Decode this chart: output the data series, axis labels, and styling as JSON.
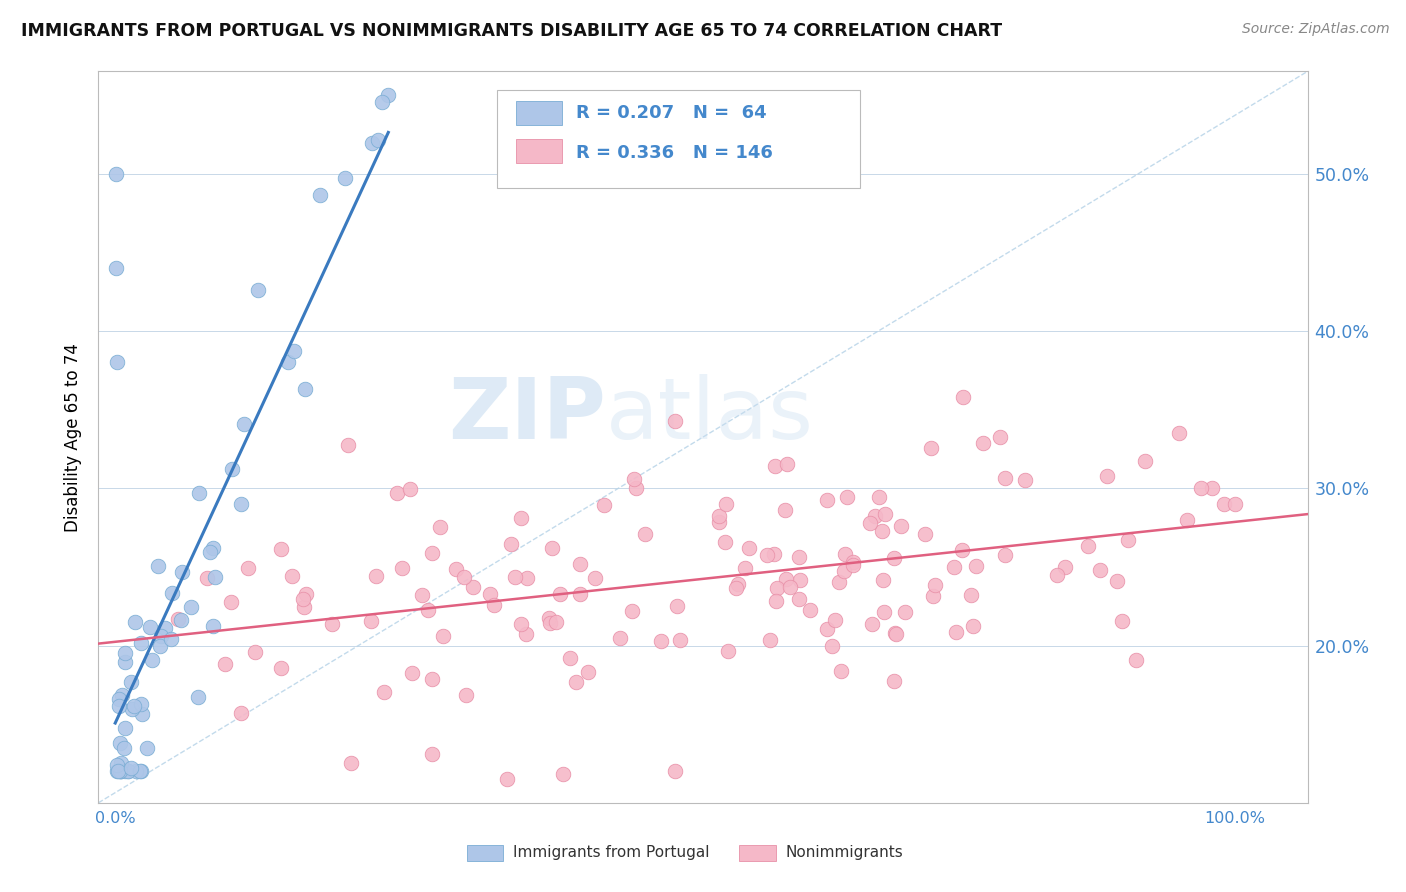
{
  "title": "IMMIGRANTS FROM PORTUGAL VS NONIMMIGRANTS DISABILITY AGE 65 TO 74 CORRELATION CHART",
  "source": "Source: ZipAtlas.com",
  "ylabel": "Disability Age 65 to 74",
  "legend_label1": "Immigrants from Portugal",
  "legend_label2": "Nonimmigrants",
  "R1": "0.207",
  "N1": "64",
  "R2": "0.336",
  "N2": "146",
  "color_blue_fill": "#aec6e8",
  "color_blue_edge": "#7aadd4",
  "color_pink_fill": "#f5b8c8",
  "color_pink_edge": "#e890a8",
  "color_line_blue": "#3a7abf",
  "color_line_pink": "#e06080",
  "color_diag": "#b8d4e8",
  "color_blue_text": "#4488cc",
  "color_right_tick": "#4488cc",
  "color_bottom_tick": "#4488cc",
  "ytick_labels": [
    "20.0%",
    "30.0%",
    "40.0%",
    "50.0%"
  ],
  "ytick_values": [
    0.2,
    0.3,
    0.4,
    0.5
  ],
  "ylim": [
    0.1,
    0.565
  ],
  "xlim": [
    -0.015,
    1.065
  ]
}
